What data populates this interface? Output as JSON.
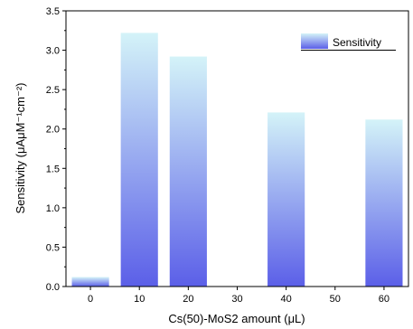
{
  "chart_data": {
    "type": "bar",
    "categories": [
      "0",
      "10",
      "20",
      "30",
      "40",
      "50",
      "60"
    ],
    "x_ticks": [
      "0",
      "10",
      "20",
      "30",
      "40",
      "50",
      "60"
    ],
    "values": [
      0.12,
      3.22,
      2.92,
      null,
      2.21,
      null,
      2.12
    ],
    "xlabel": "Cs(50)-MoS2 amount (μL)",
    "ylabel": "Sensitivity (μAμM⁻¹cm⁻²)",
    "ylim": [
      0,
      3.5
    ],
    "yticks": [
      "0.0",
      "0.5",
      "1.0",
      "1.5",
      "2.0",
      "2.5",
      "3.0",
      "3.5"
    ],
    "series": [
      {
        "name": "Sensitivity"
      }
    ],
    "legend_position": "top-right",
    "grid": false,
    "colors": {
      "bar_top": "#d4f3f8",
      "bar_bottom": "#5b5fe8",
      "axis": "#000000"
    }
  }
}
